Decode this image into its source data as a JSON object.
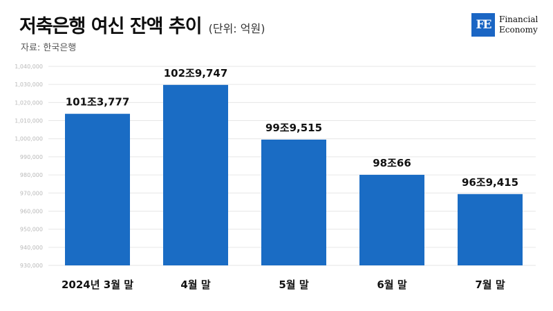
{
  "header": {
    "title": "저축은행 여신 잔액 추이",
    "unit": "(단위: 억원)",
    "source": "자료: 한국은행"
  },
  "logo": {
    "mark": "FE",
    "line1": "Financial",
    "line2": "Economy"
  },
  "colors": {
    "bar": "#1a6cc4",
    "grid": "#e6e6e6"
  },
  "chart_data": {
    "type": "bar",
    "categories": [
      "2024년 3월 말",
      "4월 말",
      "5월 말",
      "6월 말",
      "7월 말"
    ],
    "values": [
      1013777,
      1029747,
      999515,
      980066,
      969415
    ],
    "data_labels": [
      "101조3,777",
      "102조9,747",
      "99조9,515",
      "98조66",
      "96조9,415"
    ],
    "ylim": [
      930000,
      1040000
    ],
    "yticks": [
      930000,
      940000,
      950000,
      960000,
      970000,
      980000,
      990000,
      1000000,
      1010000,
      1020000,
      1030000,
      1040000
    ],
    "ytick_labels": [
      "930,000",
      "940,000",
      "950,000",
      "960,000",
      "970,000",
      "980,000",
      "990,000",
      "1,000,000",
      "1,010,000",
      "1,020,000",
      "1,030,000",
      "1,040,000"
    ],
    "grid": true,
    "legend": "none"
  }
}
